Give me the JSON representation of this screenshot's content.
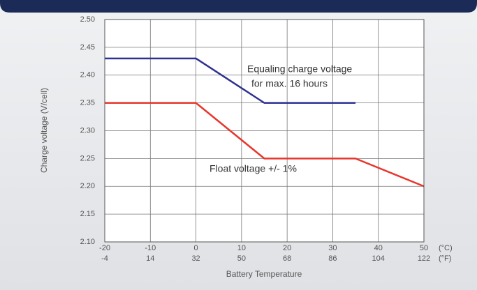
{
  "chart_data": {
    "type": "line",
    "ylabel": "Charge voltage (V/cell)",
    "xlabel": "Battery Temperature",
    "xunit": "(°C)",
    "x2unit": "(°F)",
    "xlim": [
      -20,
      50
    ],
    "xticks": [
      -20,
      -10,
      0,
      10,
      20,
      30,
      40,
      50
    ],
    "x2lim": [
      -4,
      122
    ],
    "x2ticks": [
      -4,
      14,
      32,
      50,
      68,
      86,
      104,
      122
    ],
    "ylim": [
      2.1,
      2.5
    ],
    "yticks": [
      {
        "value": 2.1,
        "label": "2.10"
      },
      2.15,
      {
        "value": 2.2,
        "label": "2.20"
      },
      2.25,
      {
        "value": 2.3,
        "label": "2.30"
      },
      2.35,
      {
        "value": 2.4,
        "label": "2.40"
      },
      2.45,
      {
        "value": 2.5,
        "label": "2.50"
      }
    ],
    "grid": true,
    "series": [
      {
        "color": "#2e3192",
        "x": [
          -20,
          0,
          15,
          35
        ],
        "values": [
          2.43,
          2.43,
          2.35,
          2.35
        ]
      },
      {
        "color": "#e8362b",
        "x": [
          -20,
          0,
          15,
          35,
          50
        ],
        "values": [
          2.35,
          2.35,
          2.25,
          2.25,
          2.2
        ]
      }
    ],
    "annotations": [
      "Equaling charge voltage",
      "for max. 16 hours",
      "Float voltage +/- 1%"
    ]
  }
}
